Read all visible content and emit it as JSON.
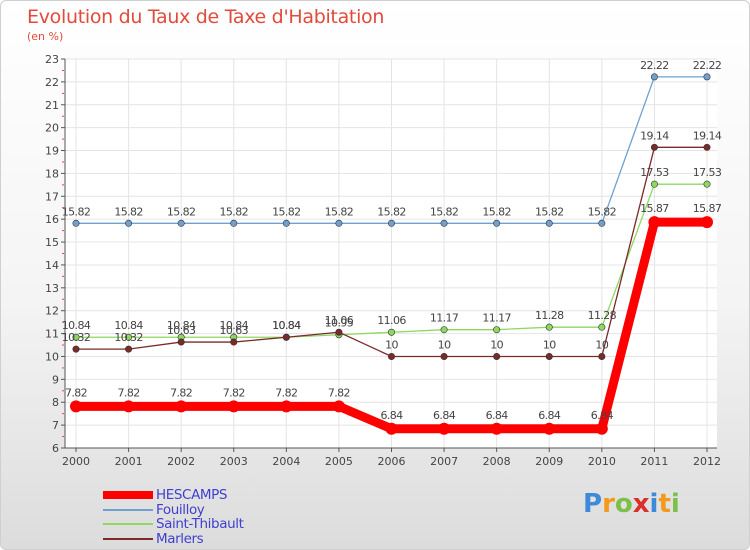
{
  "chart_data": {
    "type": "line",
    "title": "Evolution du Taux de Taxe d'Habitation",
    "subtitle": "(en %)",
    "categories": [
      "2000",
      "2001",
      "2002",
      "2003",
      "2004",
      "2005",
      "2006",
      "2007",
      "2008",
      "2009",
      "2010",
      "2011",
      "2012"
    ],
    "ylim": [
      6,
      23
    ],
    "yticks": [
      6,
      7,
      8,
      9,
      10,
      11,
      12,
      13,
      14,
      15,
      16,
      17,
      18,
      19,
      20,
      21,
      22,
      23
    ],
    "grid": true,
    "legend_position": "bottom-left",
    "series": [
      {
        "name": "HESCAMPS",
        "color": "#ff0000",
        "values": [
          7.82,
          7.82,
          7.82,
          7.82,
          7.82,
          7.82,
          6.84,
          6.84,
          6.84,
          6.84,
          6.84,
          15.87,
          15.87
        ],
        "labels": [
          "7.82",
          "7.82",
          "7.82",
          "7.82",
          "7.82",
          "7.82",
          "6.84",
          "6.84",
          "6.84",
          "6.84",
          "6.84",
          "15.87",
          "15.87"
        ]
      },
      {
        "name": "Fouilloy",
        "color": "#6fa0d0",
        "values": [
          15.82,
          15.82,
          15.82,
          15.82,
          15.82,
          15.82,
          15.82,
          15.82,
          15.82,
          15.82,
          15.82,
          22.22,
          22.22
        ],
        "labels": [
          "15.82",
          "15.82",
          "15.82",
          "15.82",
          "15.82",
          "15.82",
          "15.82",
          "15.82",
          "15.82",
          "15.82",
          "15.82",
          "22.22",
          "22.22"
        ]
      },
      {
        "name": "Saint-Thibault",
        "color": "#8fd860",
        "values": [
          10.84,
          10.84,
          10.84,
          10.84,
          10.84,
          10.95,
          11.06,
          11.17,
          11.17,
          11.28,
          11.28,
          17.53,
          17.53
        ],
        "labels": [
          "10.84",
          "10.84",
          "10.84",
          "10.84",
          "10.84",
          "10.95",
          "11.06",
          "11.17",
          "11.17",
          "11.28",
          "11.28",
          "17.53",
          "17.53"
        ]
      },
      {
        "name": "Marlers",
        "color": "#7a2a2a",
        "values": [
          10.32,
          10.32,
          10.63,
          10.63,
          10.84,
          11.06,
          10,
          10,
          10,
          10,
          10,
          19.14,
          19.14
        ],
        "labels": [
          "10.32",
          "10.32",
          "10.63",
          "10.63",
          "10.84",
          "11.06",
          "10",
          "10",
          "10",
          "10",
          "10",
          "19.14",
          "19.14"
        ]
      }
    ]
  },
  "logo": {
    "letters": [
      "P",
      "r",
      "o",
      "x",
      "i",
      "t",
      "i"
    ],
    "colors": [
      "#3d8ad8",
      "#f29a1c",
      "#7cc04a",
      "#d9302c",
      "#3d8ad8",
      "#f29a1c",
      "#7cc04a"
    ]
  }
}
